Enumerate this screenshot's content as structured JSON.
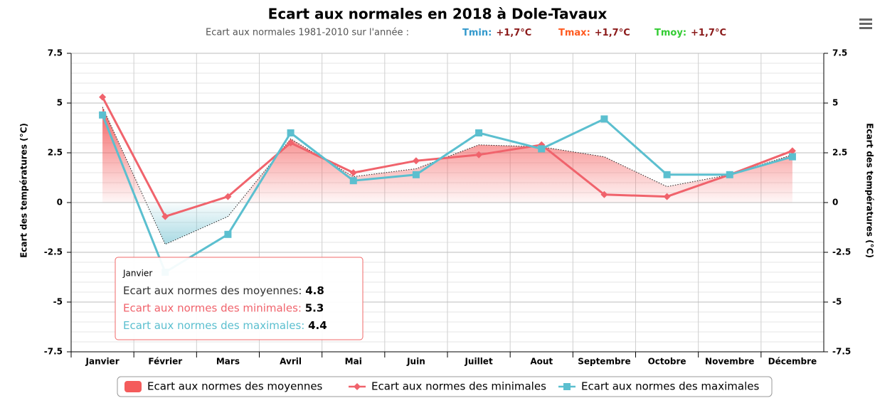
{
  "chart_data": {
    "type": "line",
    "title": "Ecart aux normales en 2018 à Dole-Tavaux",
    "subtitle": {
      "text": "Ecart aux normales 1981-2010 sur l'année :",
      "items": [
        {
          "label": "Tmin:",
          "value": "+1,7°C",
          "color": "#3399cc"
        },
        {
          "label": "Tmax:",
          "value": "+1,7°C",
          "color": "#ff5a1f"
        },
        {
          "label": "Tmoy:",
          "value": "+1,7°C",
          "color": "#33cc33"
        }
      ]
    },
    "y_label": "Ecart des températures (°C)",
    "y2_label": "Ecart des températures (°C)",
    "categories": [
      "Janvier",
      "Février",
      "Mars",
      "Avril",
      "Mai",
      "Juin",
      "Juillet",
      "Aout",
      "Septembre",
      "Octobre",
      "Novembre",
      "Décembre"
    ],
    "series": [
      {
        "name": "Ecart aux normes des moyennes",
        "type": "area",
        "color": "#f45b5b",
        "negative_color": "#7fc8d6",
        "values": [
          4.8,
          -2.1,
          -0.7,
          3.2,
          1.3,
          1.7,
          2.9,
          2.8,
          2.3,
          0.8,
          1.4,
          2.4
        ]
      },
      {
        "name": "Ecart aux normes des minimales",
        "type": "line",
        "marker": "diamond",
        "color": "#f0636c",
        "values": [
          5.3,
          -0.7,
          0.3,
          3.0,
          1.5,
          2.1,
          2.4,
          2.9,
          0.4,
          0.3,
          1.4,
          2.6
        ]
      },
      {
        "name": "Ecart aux normes des maximales",
        "type": "line",
        "marker": "square",
        "color": "#5bbfcf",
        "values": [
          4.4,
          -3.5,
          -1.6,
          3.5,
          1.1,
          1.4,
          3.5,
          2.7,
          4.2,
          1.4,
          1.4,
          2.3
        ]
      }
    ],
    "ylim": [
      -7.5,
      7.5
    ],
    "yticks": [
      7.5,
      5,
      2.5,
      0,
      -2.5,
      -5,
      -7.5
    ],
    "y2lim": [
      -7.5,
      7.5
    ],
    "y2ticks": [
      7.5,
      5,
      2.5,
      0,
      -2.5,
      -5,
      -7.5
    ],
    "grid": true,
    "legend": "bottom"
  }
}
